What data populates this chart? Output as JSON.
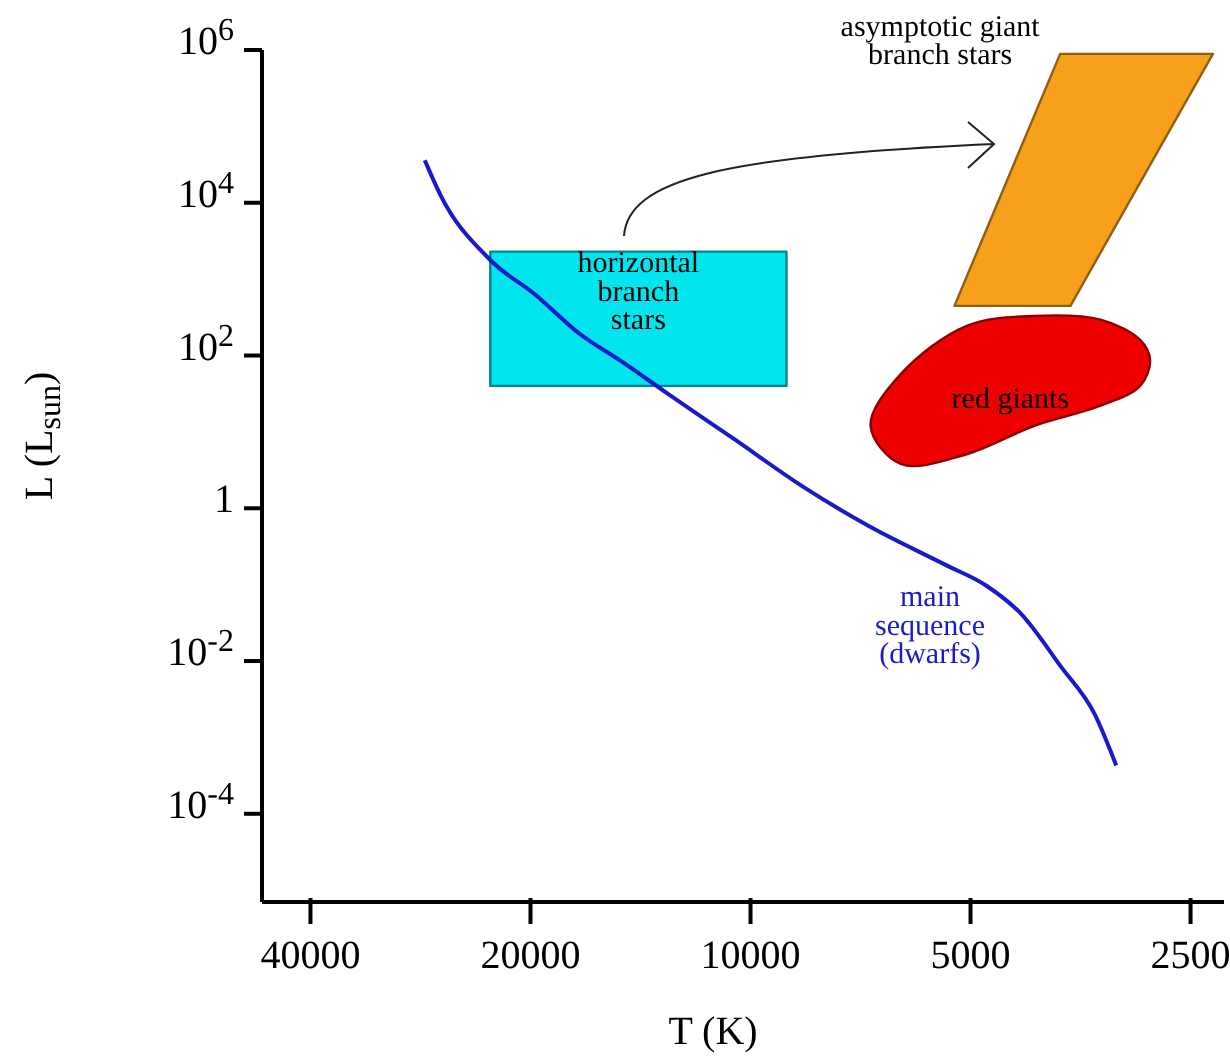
{
  "chart_data": {
    "type": "line",
    "xlabel": "T (K)",
    "ylabel": "L (L$_{sun}$)",
    "log": "xy",
    "xlim": [
      46600,
      2250
    ],
    "xticks": [
      40000,
      20000,
      10000,
      5000,
      2500
    ],
    "ylim": [
      7e-06,
      1000000
    ],
    "yticks": [
      {
        "value": 1000000,
        "label": "10$^{6}$"
      },
      {
        "value": 10000,
        "label": "10$^{4}$"
      },
      {
        "value": 100,
        "label": "10$^{2}$"
      },
      1,
      {
        "value": 0.01,
        "label": "10$^{-2}$"
      },
      {
        "value": 0.0001,
        "label": "10$^{-4}$"
      }
    ],
    "series": [
      {
        "name": "main sequence (dwarfs)",
        "color": "#1a1acc",
        "x": [
          27900,
          26600,
          22700,
          19750,
          17100,
          15100,
          13000,
          10500,
          8500,
          6900,
          5400,
          4750,
          4270,
          3770,
          3380,
          3160
        ],
        "values": [
          36000,
          13000,
          1780,
          640,
          190,
          87,
          32,
          7.9,
          1.95,
          0.59,
          0.18,
          0.096,
          0.042,
          0.0087,
          0.002,
          0.00043
        ]
      },
      {
        "name": "horizontal branch stars",
        "type": "area",
        "color": "#00e5ee",
        "x": [
          22700,
          8930,
          8930,
          22700
        ],
        "values": [
          2290,
          2290,
          40,
          40
        ]
      },
      {
        "name": "asymptotic giant branch stars",
        "type": "area",
        "color": "#f7a01c",
        "x": [
          5260,
          3770,
          2330,
          3650
        ],
        "values": [
          447,
          890000,
          890000,
          447
        ]
      },
      {
        "name": "red giants",
        "type": "area",
        "color": "#ee0000",
        "x": [
          6850,
          6230,
          5060,
          4090,
          3320,
          2930,
          2840,
          2930,
          3320,
          4090,
          5060,
          6230
        ],
        "values": [
          12,
          57,
          245,
          330,
          295,
          160,
          87,
          40,
          22,
          12,
          5.1,
          3.8
        ]
      }
    ]
  }
}
